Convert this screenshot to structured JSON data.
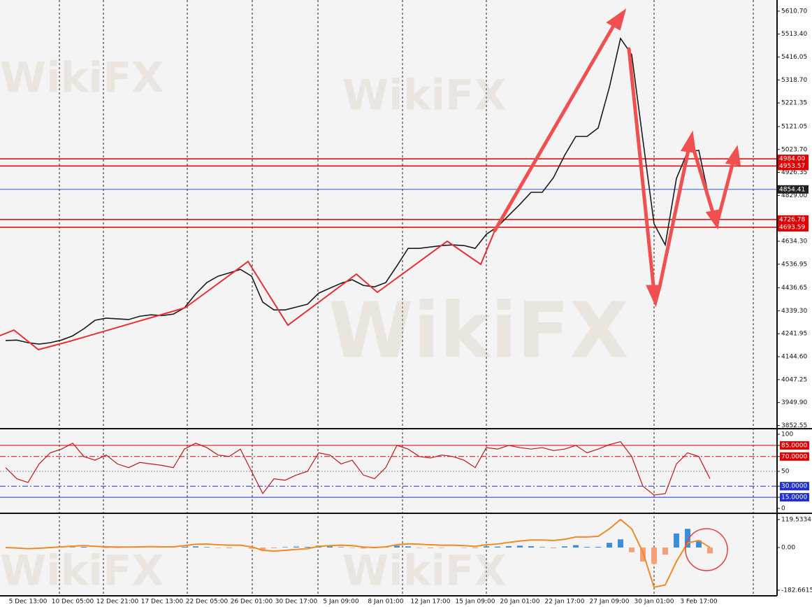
{
  "watermark": "WikiFX",
  "chart_data": [
    {
      "type": "line",
      "color": "#1a1a1a",
      "categories": [
        null,
        null,
        "5 Dec 13:00",
        null,
        null,
        null,
        "10 Dec 05:00",
        null,
        null,
        null,
        "12 Dec 21:00",
        null,
        null,
        null,
        "17 Dec 13:00",
        null,
        null,
        null,
        "22 Dec 05:00",
        null,
        null,
        null,
        "26 Dec 01:00",
        null,
        null,
        null,
        "30 Dec 17:00",
        null,
        null,
        null,
        "5 Jan 09:00",
        null,
        null,
        null,
        "8 Jan 01:00",
        null,
        null,
        null,
        "12 Jan 17:00",
        null,
        null,
        null,
        "15 Jan 09:00",
        null,
        null,
        null,
        "20 Jan 01:00",
        null,
        null,
        null,
        "22 Jan 17:00",
        null,
        null,
        null,
        "27 Jan 09:00",
        null,
        null,
        null,
        "30 Jan 01:00",
        null,
        null,
        null,
        "3 Feb 17:00",
        null
      ],
      "values": [
        4213,
        4215,
        4204,
        4198,
        4204,
        4215,
        4233,
        4263,
        4299,
        4308,
        4305,
        4302,
        4316,
        4322,
        4319,
        4325,
        4352,
        4411,
        4459,
        4486,
        4500,
        4515,
        4486,
        4376,
        4343,
        4343,
        4355,
        4367,
        4414,
        4435,
        4456,
        4471,
        4447,
        4441,
        4459,
        4530,
        4604,
        4604,
        4610,
        4616,
        4619,
        4616,
        4604,
        4664,
        4696,
        4744,
        4791,
        4842,
        4842,
        4904,
        4999,
        5079,
        5079,
        5115,
        5287,
        5495,
        5426,
        5064,
        4708,
        4619,
        4901,
        5014,
        5020,
        4797
      ],
      "ylim": [
        3842,
        5658
      ],
      "yticks": [
        {
          "value": 5610.7,
          "label": "5610.70"
        },
        {
          "value": 5513.4,
          "label": "5513.40"
        },
        {
          "value": 5416.05,
          "label": "5416.05"
        },
        {
          "value": 5318.7,
          "label": "5318.70"
        },
        {
          "value": 5221.35,
          "label": "5221.35"
        },
        {
          "value": 5121.05,
          "label": "5121.05"
        },
        {
          "value": 5023.7,
          "label": "5023.70"
        },
        {
          "value": 4926.35,
          "label": "4926.35"
        },
        {
          "value": 4829,
          "label": "4829.00"
        },
        {
          "value": 4634.3,
          "label": "4634.30"
        },
        {
          "value": 4536.95,
          "label": "4536.95"
        },
        {
          "value": 4436.65,
          "label": "4436.65"
        },
        {
          "value": 4339.3,
          "label": "4339.30"
        },
        {
          "value": 4241.95,
          "label": "4241.95"
        },
        {
          "value": 4144.6,
          "label": "4144.60"
        },
        {
          "value": 4047.25,
          "label": "4047.25"
        },
        {
          "value": 3949.9,
          "label": "3949.90"
        },
        {
          "value": 3852.55,
          "label": "3852.55"
        }
      ],
      "levels": [
        {
          "value": 4984,
          "label": "4984.00",
          "color": "#e00000"
        },
        {
          "value": 4953.57,
          "label": "4953.57",
          "color": "#e00000"
        },
        {
          "value": 4854.41,
          "label": "4854.41",
          "color": "#2040c0"
        },
        {
          "value": 4726.78,
          "label": "4726.78",
          "color": "#e00000"
        },
        {
          "value": 4693.59,
          "label": "4693.59",
          "color": "#e00000"
        }
      ]
    },
    {
      "type": "line",
      "color": "#c01818",
      "values": [
        55,
        40,
        35,
        60,
        75,
        80,
        88,
        70,
        65,
        72,
        60,
        55,
        62,
        60,
        58,
        55,
        80,
        88,
        82,
        72,
        70,
        80,
        50,
        20,
        40,
        38,
        45,
        50,
        75,
        72,
        60,
        65,
        45,
        40,
        55,
        85,
        80,
        70,
        68,
        72,
        70,
        65,
        55,
        82,
        80,
        85,
        82,
        80,
        82,
        78,
        80,
        85,
        75,
        80,
        86,
        90,
        70,
        30,
        18,
        20,
        60,
        75,
        70,
        40
      ],
      "ylim": [
        0,
        100
      ],
      "yticks": [
        100,
        {
          "value": 85,
          "label": "85.0000"
        },
        {
          "value": 70,
          "label": "70.0000"
        },
        50,
        {
          "value": 30,
          "label": "30.0000"
        },
        {
          "value": 15,
          "label": "15.0000"
        },
        0
      ]
    },
    {
      "type": "macd",
      "series": [
        {
          "type": "bar",
          "color": "#3b8ed8",
          "neg_color": "#f4a07a",
          "values": [
            0,
            0,
            0,
            0,
            0,
            0,
            2,
            3,
            0,
            -2,
            -2,
            0,
            0,
            0,
            0,
            0,
            3,
            5,
            2,
            -2,
            -3,
            0,
            -5,
            -10,
            -3,
            2,
            4,
            3,
            8,
            5,
            2,
            -2,
            -4,
            -3,
            2,
            8,
            5,
            -2,
            -3,
            -2,
            0,
            -2,
            -3,
            5,
            4,
            6,
            8,
            6,
            2,
            -3,
            5,
            10,
            3,
            3,
            20,
            35,
            -20,
            -60,
            -70,
            -30,
            60,
            80,
            30,
            -25
          ]
        },
        {
          "type": "line",
          "color": "#f08a24",
          "values": [
            0,
            -2,
            -5,
            -3,
            0,
            3,
            6,
            8,
            5,
            3,
            2,
            2,
            3,
            4,
            3,
            3,
            8,
            14,
            15,
            12,
            10,
            10,
            3,
            -12,
            -15,
            -12,
            -8,
            -5,
            5,
            8,
            10,
            8,
            2,
            0,
            3,
            12,
            16,
            14,
            12,
            10,
            10,
            8,
            5,
            12,
            15,
            22,
            28,
            32,
            32,
            30,
            35,
            45,
            45,
            48,
            80,
            120,
            80,
            -20,
            -170,
            -160,
            -60,
            20,
            30,
            0
          ]
        }
      ],
      "ylim": [
        -206.6,
        140.5
      ],
      "yticks": [
        119.5334,
        {
          "value": 0,
          "label": "0.00"
        },
        -182.6615
      ]
    }
  ]
}
